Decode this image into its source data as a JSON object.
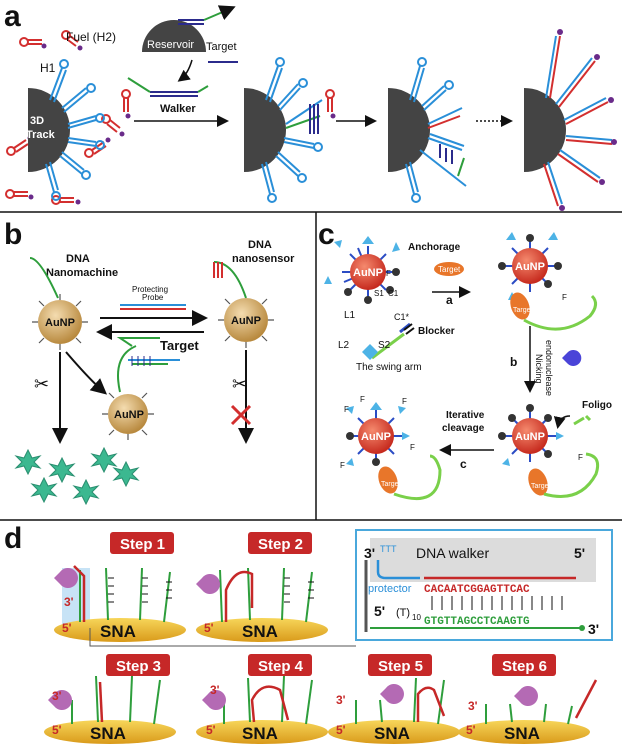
{
  "panel_a": {
    "label": "a",
    "fuel": "Fuel (H2)",
    "reservoir": "Reservoir",
    "target": "Target",
    "h1": "H1",
    "track_line1": "3D",
    "track_line2": "Track",
    "walker": "Walker"
  },
  "panel_b": {
    "label": "b",
    "nanomachine_line1": "DNA",
    "nanomachine_line2": "Nanomachine",
    "nanosensor_line1": "DNA",
    "nanosensor_line2": "nanosensor",
    "probe_line1": "Protecting",
    "probe_line2": "Probe",
    "target": "Target",
    "aunp": "AuNP"
  },
  "panel_c": {
    "label": "c",
    "aunp": "AuNP",
    "anchorage": "Anchorage",
    "target": "Target",
    "s1": "S1",
    "c1": "C1",
    "l1": "L1",
    "c1star": "C1*",
    "blocker": "Blocker",
    "l2": "L2",
    "s2": "S2",
    "swing_arm": "The swing arm",
    "step_a": "a",
    "step_b": "b",
    "nicking_line1": "Nicking",
    "nicking_line2": "endonuclease",
    "foligo": "Foligo",
    "iterative_line1": "Iterative",
    "iterative_line2": "cleavage",
    "step_c": "c",
    "f": "F",
    "target_tag": "Target"
  },
  "panel_d": {
    "label": "d",
    "steps": [
      "Step 1",
      "Step 2",
      "Step 3",
      "Step 4",
      "Step 5",
      "Step 6"
    ],
    "sna": "SNA",
    "prime3": "3'",
    "prime5": "5'",
    "dna_walker": "DNA walker",
    "protector": "protector",
    "inset_3": "3'",
    "inset_5": "5'",
    "inset_5b": "5'",
    "inset_3b": "3'",
    "t_loop": "TTT",
    "t_loop2": "T",
    "walker_seq": "CACAATCGGAGTTCAC",
    "strand_seq": "GTGTTAGCCTCAAGTG",
    "t10": "(T)",
    "t10_sub": "10"
  },
  "colors": {
    "red": "#d32f2f",
    "blue": "#2a8fd8",
    "navy": "#2b2b8c",
    "green": "#2e9e3c",
    "darkred": "#a3121b",
    "gold": "#e8b830",
    "aunp_red": "#e24a3c"
  }
}
